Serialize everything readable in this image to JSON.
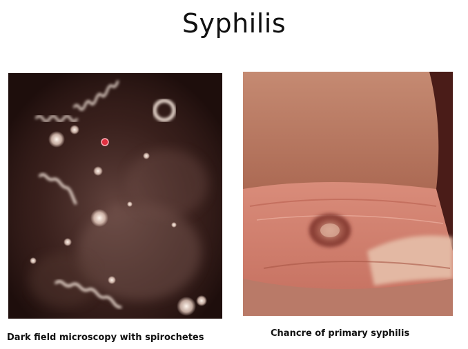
{
  "slide": {
    "title": "Syphilis"
  },
  "figures": [
    {
      "caption": "Dark field microscopy with spirochetes"
    },
    {
      "caption": "Chancre of primary syphilis"
    }
  ]
}
